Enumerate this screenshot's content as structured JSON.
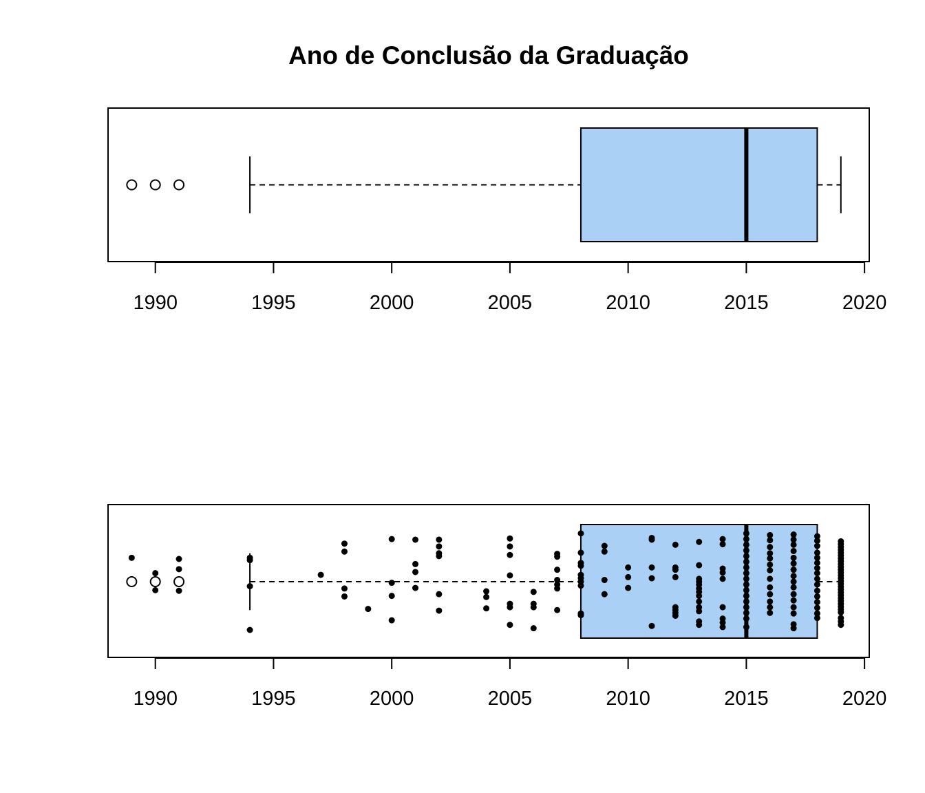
{
  "chart_data": {
    "type": "boxplot",
    "title": "Ano de Conclusão da Graduação",
    "xlabel": "",
    "ylabel": "",
    "xlim": [
      1988,
      2020.2
    ],
    "ticks": [
      1990,
      1995,
      2000,
      2005,
      2010,
      2015,
      2020
    ],
    "box_fill": "#aad0f5",
    "stats": {
      "whisker_low": 1994,
      "q1": 2008,
      "median": 2015,
      "q3": 2018,
      "whisker_high": 2019,
      "outliers": [
        1989,
        1990,
        1991
      ]
    },
    "panels": [
      {
        "name": "boxplot",
        "show_points": false
      },
      {
        "name": "boxplot-with-points",
        "show_points": true
      }
    ],
    "points": [
      [
        1989,
        0.42
      ],
      [
        1990,
        0.15
      ],
      [
        1990,
        -0.15
      ],
      [
        1991,
        0.4
      ],
      [
        1991,
        0.22
      ],
      [
        1991,
        -0.16
      ],
      [
        1994,
        0.42
      ],
      [
        1994,
        0.38
      ],
      [
        1994,
        -0.08
      ],
      [
        1994,
        -0.85
      ],
      [
        1997,
        0.12
      ],
      [
        1998,
        0.67
      ],
      [
        1998,
        0.53
      ],
      [
        1998,
        -0.12
      ],
      [
        1998,
        -0.26
      ],
      [
        1999,
        -0.48
      ],
      [
        2000,
        0.75
      ],
      [
        2000,
        -0.02
      ],
      [
        2000,
        -0.25
      ],
      [
        2000,
        -0.68
      ],
      [
        2001,
        0.74
      ],
      [
        2001,
        0.31
      ],
      [
        2001,
        0.17
      ],
      [
        2001,
        -0.11
      ],
      [
        2002,
        0.74
      ],
      [
        2002,
        0.62
      ],
      [
        2002,
        0.5
      ],
      [
        2002,
        0.45
      ],
      [
        2002,
        -0.22
      ],
      [
        2002,
        -0.51
      ],
      [
        2004,
        -0.17
      ],
      [
        2004,
        -0.27
      ],
      [
        2004,
        -0.47
      ],
      [
        2005,
        0.76
      ],
      [
        2005,
        0.62
      ],
      [
        2005,
        0.47
      ],
      [
        2005,
        0.11
      ],
      [
        2005,
        -0.39
      ],
      [
        2005,
        -0.45
      ],
      [
        2005,
        -0.76
      ],
      [
        2006,
        -0.18
      ],
      [
        2006,
        -0.39
      ],
      [
        2006,
        -0.45
      ],
      [
        2006,
        -0.82
      ],
      [
        2007,
        0.49
      ],
      [
        2007,
        0.44
      ],
      [
        2007,
        0.21
      ],
      [
        2007,
        0.03
      ],
      [
        2007,
        -0.05
      ],
      [
        2007,
        -0.12
      ],
      [
        2007,
        -0.5
      ],
      [
        2008,
        0.85
      ],
      [
        2008,
        0.51
      ],
      [
        2008,
        0.33
      ],
      [
        2008,
        0.28
      ],
      [
        2008,
        0.12
      ],
      [
        2008,
        0.06
      ],
      [
        2008,
        0.0
      ],
      [
        2008,
        -0.07
      ],
      [
        2008,
        -0.59
      ],
      [
        2008,
        -0.56
      ],
      [
        2009,
        0.63
      ],
      [
        2009,
        0.53
      ],
      [
        2009,
        0.03
      ],
      [
        2009,
        -0.22
      ],
      [
        2010,
        0.25
      ],
      [
        2010,
        0.08
      ],
      [
        2010,
        -0.11
      ],
      [
        2011,
        0.77
      ],
      [
        2011,
        0.74
      ],
      [
        2011,
        0.25
      ],
      [
        2011,
        0.06
      ],
      [
        2011,
        -0.78
      ],
      [
        2012,
        0.65
      ],
      [
        2012,
        0.25
      ],
      [
        2012,
        0.21
      ],
      [
        2012,
        0.08
      ],
      [
        2012,
        -0.45
      ],
      [
        2012,
        -0.5
      ],
      [
        2012,
        -0.55
      ],
      [
        2012,
        -0.6
      ],
      [
        2013,
        0.7
      ],
      [
        2013,
        0.29
      ],
      [
        2013,
        0.05
      ],
      [
        2013,
        0.0
      ],
      [
        2013,
        -0.05
      ],
      [
        2013,
        -0.12
      ],
      [
        2013,
        -0.18
      ],
      [
        2013,
        -0.25
      ],
      [
        2013,
        -0.35
      ],
      [
        2013,
        -0.45
      ],
      [
        2013,
        -0.52
      ],
      [
        2013,
        -0.7
      ],
      [
        2013,
        -0.76
      ],
      [
        2014,
        0.75
      ],
      [
        2014,
        0.66
      ],
      [
        2014,
        0.23
      ],
      [
        2014,
        0.16
      ],
      [
        2014,
        0.05
      ],
      [
        2014,
        -0.45
      ],
      [
        2014,
        -0.65
      ],
      [
        2014,
        -0.72
      ],
      [
        2014,
        -0.8
      ],
      [
        2015,
        0.85
      ],
      [
        2015,
        0.75
      ],
      [
        2015,
        0.65
      ],
      [
        2015,
        0.55
      ],
      [
        2015,
        0.45
      ],
      [
        2015,
        0.35
      ],
      [
        2015,
        0.25
      ],
      [
        2015,
        0.15
      ],
      [
        2015,
        0.05
      ],
      [
        2015,
        -0.05
      ],
      [
        2015,
        -0.15
      ],
      [
        2015,
        -0.25
      ],
      [
        2015,
        -0.35
      ],
      [
        2015,
        -0.45
      ],
      [
        2015,
        -0.55
      ],
      [
        2015,
        -0.65
      ],
      [
        2015,
        -0.8
      ],
      [
        2016,
        0.82
      ],
      [
        2016,
        0.73
      ],
      [
        2016,
        0.61
      ],
      [
        2016,
        0.5
      ],
      [
        2016,
        0.41
      ],
      [
        2016,
        0.3
      ],
      [
        2016,
        0.2
      ],
      [
        2016,
        0.05
      ],
      [
        2016,
        -0.1
      ],
      [
        2016,
        -0.22
      ],
      [
        2016,
        -0.35
      ],
      [
        2016,
        -0.45
      ],
      [
        2016,
        -0.55
      ],
      [
        2017,
        0.83
      ],
      [
        2017,
        0.74
      ],
      [
        2017,
        0.65
      ],
      [
        2017,
        0.54
      ],
      [
        2017,
        0.42
      ],
      [
        2017,
        0.32
      ],
      [
        2017,
        0.21
      ],
      [
        2017,
        0.1
      ],
      [
        2017,
        0.0
      ],
      [
        2017,
        -0.1
      ],
      [
        2017,
        -0.22
      ],
      [
        2017,
        -0.33
      ],
      [
        2017,
        -0.45
      ],
      [
        2017,
        -0.56
      ],
      [
        2017,
        -0.75
      ],
      [
        2017,
        -0.82
      ],
      [
        2018,
        0.8
      ],
      [
        2018,
        0.72
      ],
      [
        2018,
        0.63
      ],
      [
        2018,
        0.51
      ],
      [
        2018,
        0.42
      ],
      [
        2018,
        0.33
      ],
      [
        2018,
        0.24
      ],
      [
        2018,
        0.15
      ],
      [
        2018,
        0.05
      ],
      [
        2018,
        -0.05
      ],
      [
        2018,
        -0.16
      ],
      [
        2018,
        -0.26
      ],
      [
        2018,
        -0.36
      ],
      [
        2018,
        -0.46
      ],
      [
        2018,
        -0.56
      ],
      [
        2018,
        -0.64
      ],
      [
        2019,
        0.71
      ],
      [
        2019,
        0.66
      ],
      [
        2019,
        0.61
      ],
      [
        2019,
        0.56
      ],
      [
        2019,
        0.51
      ],
      [
        2019,
        0.46
      ],
      [
        2019,
        0.41
      ],
      [
        2019,
        0.36
      ],
      [
        2019,
        0.31
      ],
      [
        2019,
        0.26
      ],
      [
        2019,
        0.21
      ],
      [
        2019,
        0.16
      ],
      [
        2019,
        0.11
      ],
      [
        2019,
        0.06
      ],
      [
        2019,
        0.01
      ],
      [
        2019,
        -0.04
      ],
      [
        2019,
        -0.09
      ],
      [
        2019,
        -0.14
      ],
      [
        2019,
        -0.19
      ],
      [
        2019,
        -0.24
      ],
      [
        2019,
        -0.29
      ],
      [
        2019,
        -0.34
      ],
      [
        2019,
        -0.39
      ],
      [
        2019,
        -0.44
      ],
      [
        2019,
        -0.49
      ],
      [
        2019,
        -0.54
      ],
      [
        2019,
        -0.64
      ],
      [
        2019,
        -0.7
      ],
      [
        2019,
        -0.76
      ]
    ]
  }
}
